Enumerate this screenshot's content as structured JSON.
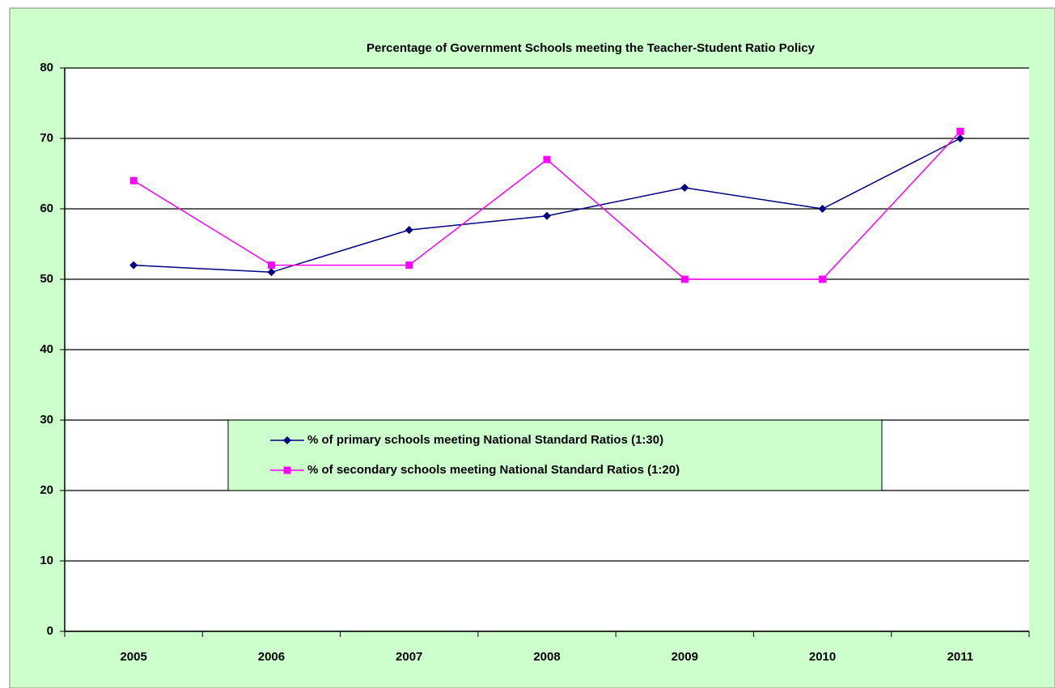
{
  "chart_data": {
    "type": "line",
    "title": "Percentage of Government Schools meeting the Teacher-Student Ratio Policy",
    "categories": [
      "2005",
      "2006",
      "2007",
      "2008",
      "2009",
      "2010",
      "2011"
    ],
    "series": [
      {
        "name": "% of primary schools meeting National Standard Ratios (1:30)",
        "color": "#000080",
        "marker": "diamond",
        "values": [
          52,
          51,
          57,
          59,
          63,
          60,
          70
        ]
      },
      {
        "name": "% of secondary schools meeting National Standard Ratios (1:20)",
        "color": "#ff00ff",
        "marker": "square",
        "values": [
          64,
          52,
          52,
          67,
          50,
          50,
          71
        ]
      }
    ],
    "ylim": [
      0,
      80
    ],
    "yticks": [
      0,
      10,
      20,
      30,
      40,
      50,
      60,
      70,
      80
    ],
    "grid": true
  }
}
